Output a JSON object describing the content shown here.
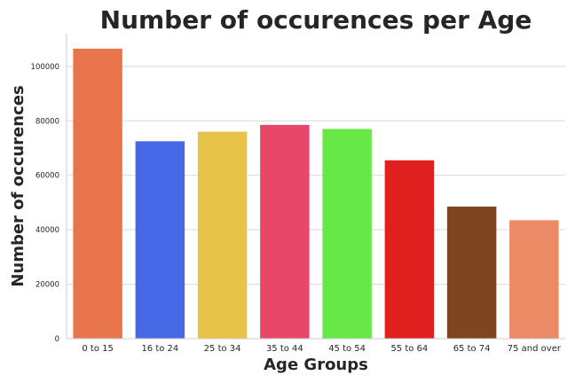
{
  "chart_data": {
    "type": "bar",
    "title": "Number of occurences per Age",
    "xlabel": "Age Groups",
    "ylabel": "Number of occurences",
    "categories": [
      "0 to 15",
      "16 to 24",
      "25 to 34",
      "35 to 44",
      "45 to 54",
      "55 to 64",
      "65 to 74",
      "75 and over"
    ],
    "values": [
      106500,
      72500,
      76000,
      78500,
      77000,
      65500,
      48500,
      43500
    ],
    "colors": [
      "#E8764A",
      "#4769E8",
      "#E7C347",
      "#E8476A",
      "#67E847",
      "#E01F1F",
      "#7E4520",
      "#EB8A65"
    ],
    "ylim": [
      0,
      112000
    ],
    "yticks": [
      0,
      20000,
      40000,
      60000,
      80000,
      100000
    ],
    "ytick_labels": [
      "0",
      "20000",
      "40000",
      "60000",
      "80000",
      "100000"
    ],
    "grid": true,
    "legend": "none"
  }
}
